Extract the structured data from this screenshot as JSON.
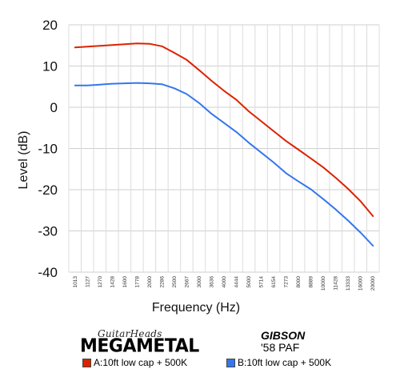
{
  "chart_data": {
    "type": "line",
    "title": "",
    "xlabel": "Frequency (Hz)",
    "ylabel": "Level (dB)",
    "ylim": [
      -40,
      20
    ],
    "yticks": [
      20,
      10,
      0,
      -10,
      -20,
      -30,
      -40
    ],
    "grid": true,
    "legend_position": "bottom",
    "categories": [
      "1013",
      "1127",
      "1270",
      "1428",
      "1600",
      "1778",
      "2000",
      "2286",
      "2500",
      "2667",
      "3000",
      "3636",
      "4000",
      "4444",
      "5000",
      "5714",
      "6154",
      "7273",
      "8000",
      "8889",
      "10000",
      "11428",
      "13333",
      "16000",
      "20000"
    ],
    "series": [
      {
        "name": "A:10ft low cap + 500K",
        "color": "#dd2200",
        "values": [
          14.5,
          14.7,
          14.9,
          15.1,
          15.3,
          15.5,
          15.4,
          14.8,
          13.2,
          11.5,
          9.0,
          6.4,
          4.0,
          1.8,
          -1.0,
          -3.4,
          -5.8,
          -8.2,
          -10.3,
          -12.4,
          -14.6,
          -17.1,
          -19.8,
          -22.8,
          -26.4
        ]
      },
      {
        "name": "B:10ft low cap + 500K",
        "color": "#3377ee",
        "values": [
          5.3,
          5.3,
          5.5,
          5.7,
          5.8,
          5.9,
          5.8,
          5.6,
          4.6,
          3.2,
          1.0,
          -1.6,
          -3.8,
          -6.0,
          -8.6,
          -11.0,
          -13.4,
          -16.0,
          -18.0,
          -19.9,
          -22.3,
          -24.8,
          -27.5,
          -30.4,
          -33.6
        ]
      }
    ]
  },
  "branding": {
    "site": "GuitarHeads",
    "logo": "MEGAMETAL",
    "maker": "GIBSON",
    "model": "'58 PAF"
  }
}
